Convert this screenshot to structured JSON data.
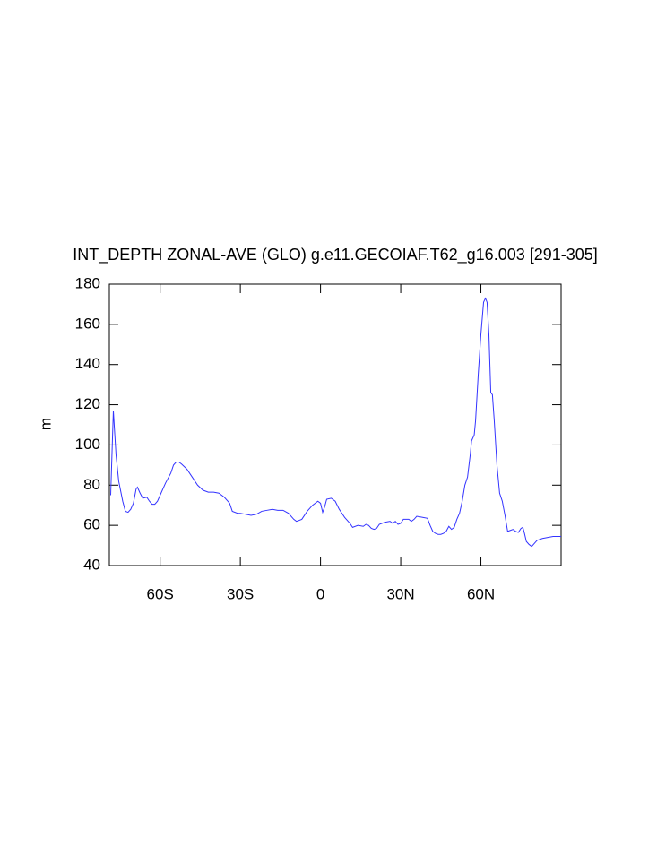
{
  "chart_data": {
    "type": "line",
    "title": "INT_DEPTH ZONAL-AVE (GLO) g.e11.GECOIAF.T62_g16.003 [291-305]",
    "ylabel": "m",
    "color": "#3333ff",
    "xlim": [
      -79,
      90
    ],
    "xticks": [
      {
        "value": -60,
        "label": "60S"
      },
      {
        "value": -30,
        "label": "30S"
      },
      0,
      {
        "value": 30,
        "label": "30N"
      },
      {
        "value": 60,
        "label": "60N"
      }
    ],
    "ylim": [
      40,
      180
    ],
    "yticks": [
      40,
      60,
      80,
      100,
      120,
      140,
      160,
      180
    ],
    "x": [
      -78.5,
      -77.5,
      -76.5,
      -75.5,
      -74,
      -73,
      -72,
      -71,
      -70,
      -69,
      -68.5,
      -67.5,
      -66.5,
      -65,
      -64,
      -63,
      -62,
      -61,
      -60,
      -58,
      -56,
      -55,
      -54,
      -53,
      -52,
      -50,
      -48,
      -46,
      -44,
      -42,
      -40,
      -38,
      -36,
      -34,
      -33,
      -31,
      -30,
      -28,
      -26,
      -24,
      -22,
      -20,
      -18,
      -16,
      -14,
      -12,
      -10,
      -9,
      -7,
      -5,
      -3,
      -1,
      0,
      0.8,
      1.5,
      2.3,
      4,
      5.5,
      7,
      9,
      11,
      12,
      14,
      16,
      17,
      18,
      19,
      20,
      21,
      22,
      24,
      26,
      27,
      28,
      29,
      30,
      31,
      33,
      34,
      35,
      36,
      38,
      40,
      41,
      42,
      43,
      44,
      45,
      46,
      47,
      48,
      49,
      50,
      51,
      52,
      53,
      54,
      55,
      56,
      56.5,
      57.5,
      58,
      59,
      60,
      61,
      61.7,
      62.3,
      63,
      63.7,
      64.3,
      65,
      66,
      67,
      68,
      69,
      70,
      71,
      72,
      73,
      74,
      75,
      75.7,
      76.3,
      77,
      78,
      79,
      80,
      81,
      83,
      85,
      87,
      89,
      90
    ],
    "values": [
      75,
      117,
      95,
      82,
      72,
      67,
      66.5,
      68,
      71,
      78,
      79,
      76,
      73.5,
      74,
      72,
      70.5,
      70.5,
      72,
      75,
      81,
      86,
      90,
      91.5,
      91.5,
      90.5,
      88,
      84,
      80,
      77.5,
      76.5,
      76.5,
      76,
      74,
      71,
      67,
      66,
      66,
      65.5,
      65,
      65.5,
      67,
      67.5,
      68,
      67.5,
      67.5,
      66,
      63,
      62,
      63,
      67,
      70,
      72,
      71,
      66.5,
      69,
      73,
      73.5,
      72,
      68,
      64,
      61,
      59,
      60,
      59.5,
      60.5,
      60,
      58.5,
      58,
      58.5,
      60.5,
      61.5,
      62,
      61,
      62,
      60.5,
      61,
      63,
      63,
      62,
      63,
      64.5,
      64,
      63.5,
      60,
      57,
      56,
      55.5,
      55.5,
      56,
      57,
      59.5,
      58,
      59,
      63,
      66,
      72,
      80,
      84,
      95,
      102,
      105,
      112,
      135,
      155,
      171,
      173,
      171,
      155,
      126,
      125,
      112,
      90,
      76,
      72,
      65,
      57,
      57.5,
      58,
      57,
      56.5,
      58.5,
      59,
      56,
      52,
      50.5,
      49.5,
      51,
      52.5,
      53.5,
      54,
      54.5,
      54.5,
      54.5
    ]
  }
}
